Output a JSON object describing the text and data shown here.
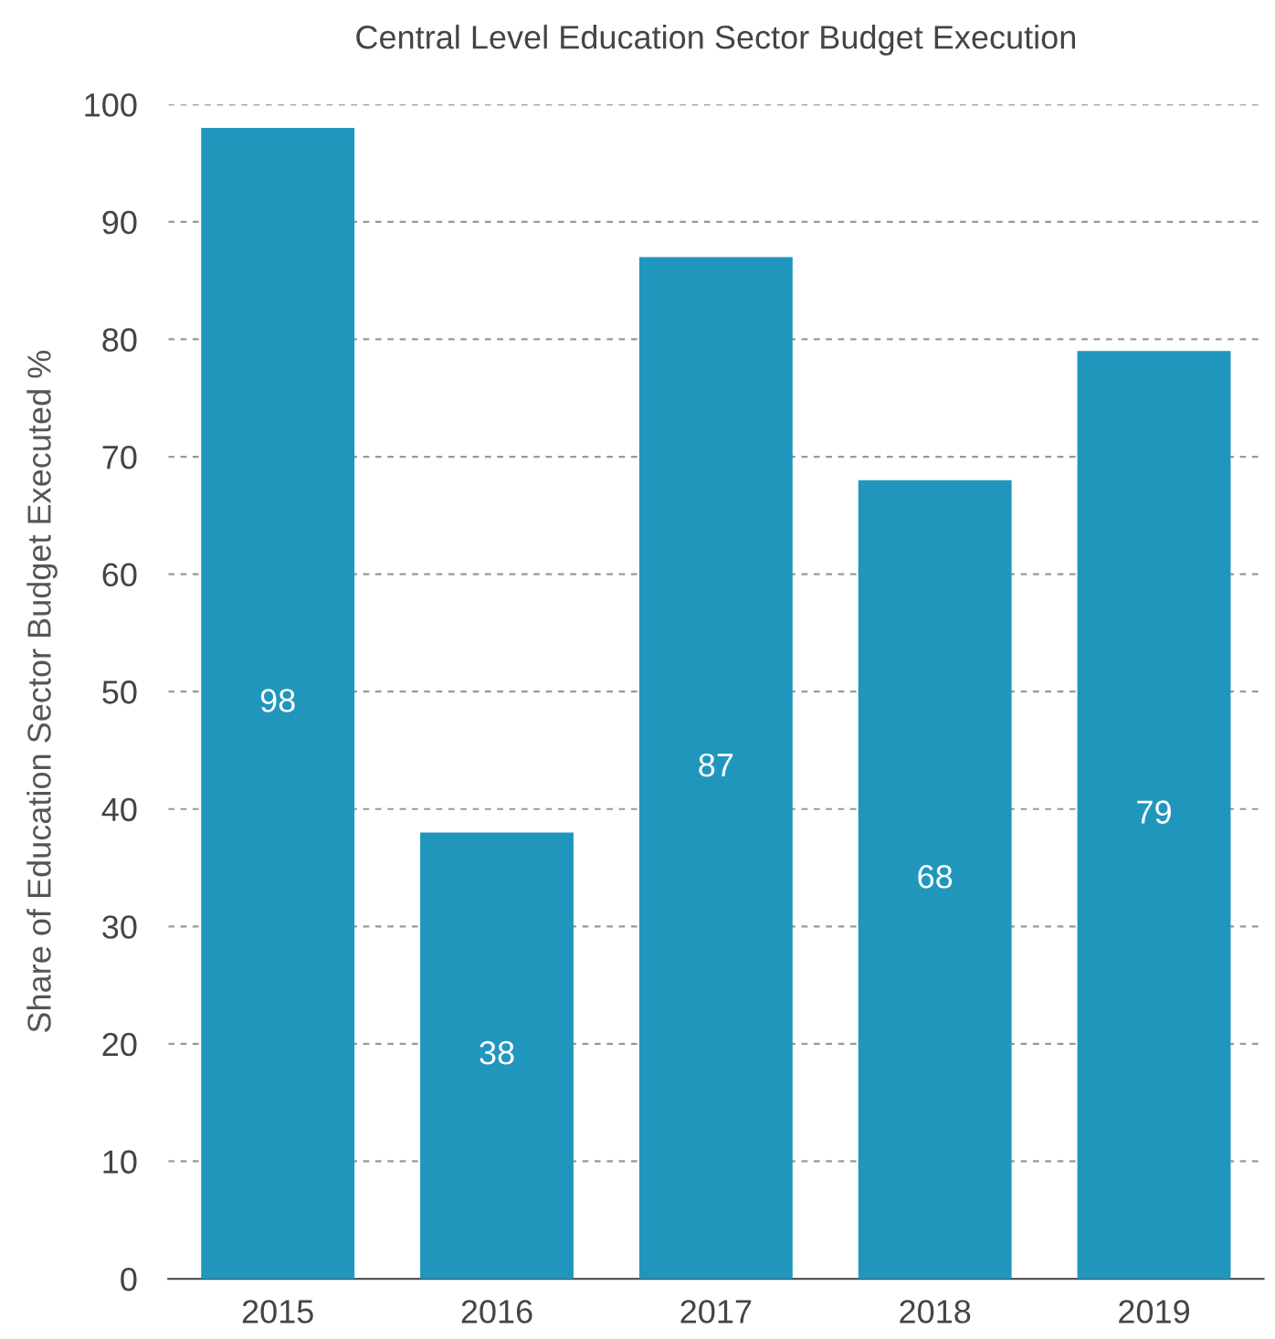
{
  "chart_data": {
    "type": "bar",
    "title": "Central Level Education Sector Budget Execution",
    "ylabel": "Share of Education Sector Budget Executed %",
    "categories": [
      "2015",
      "2016",
      "2017",
      "2018",
      "2019"
    ],
    "values": [
      98,
      38,
      87,
      68,
      79
    ],
    "color": "#2196bd",
    "ylim": [
      0,
      100
    ],
    "yticks": [
      0,
      10,
      20,
      30,
      40,
      50,
      60,
      70,
      80,
      90,
      100
    ],
    "grid": "y",
    "data_labels": true
  }
}
